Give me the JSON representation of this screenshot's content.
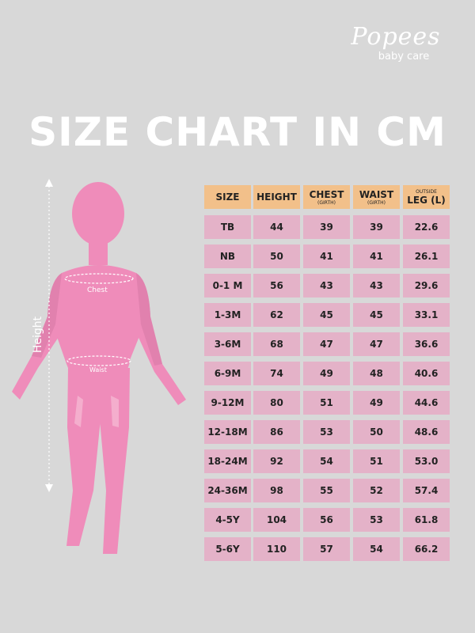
{
  "logo": {
    "brand": "Popees",
    "tagline": "baby care"
  },
  "title": "SIZE CHART IN CM",
  "figure": {
    "height_label": "Height",
    "chest_label": "Chest",
    "waist_label": "Waist",
    "body_color": "#ef8cba"
  },
  "table": {
    "headers": [
      {
        "label": "SIZE",
        "sub": ""
      },
      {
        "label": "HEIGHT",
        "sub": ""
      },
      {
        "label": "CHEST",
        "sub": "(GIRTH)"
      },
      {
        "label": "WAIST",
        "sub": "(GIRTH)"
      },
      {
        "label": "LEG (L)",
        "pre": "OUTSIDE",
        "sub": ""
      }
    ],
    "rows": [
      [
        "TB",
        "44",
        "39",
        "39",
        "22.6"
      ],
      [
        "NB",
        "50",
        "41",
        "41",
        "26.1"
      ],
      [
        "0-1 M",
        "56",
        "43",
        "43",
        "29.6"
      ],
      [
        "1-3M",
        "62",
        "45",
        "45",
        "33.1"
      ],
      [
        "3-6M",
        "68",
        "47",
        "47",
        "36.6"
      ],
      [
        "6-9M",
        "74",
        "49",
        "48",
        "40.6"
      ],
      [
        "9-12M",
        "80",
        "51",
        "49",
        "44.6"
      ],
      [
        "12-18M",
        "86",
        "53",
        "50",
        "48.6"
      ],
      [
        "18-24M",
        "92",
        "54",
        "51",
        "53.0"
      ],
      [
        "24-36M",
        "98",
        "55",
        "52",
        "57.4"
      ],
      [
        "4-5Y",
        "104",
        "56",
        "53",
        "61.8"
      ],
      [
        "5-6Y",
        "110",
        "57",
        "54",
        "66.2"
      ]
    ],
    "header_color": "#f2c08a",
    "cell_color": "#e4b2c8"
  }
}
